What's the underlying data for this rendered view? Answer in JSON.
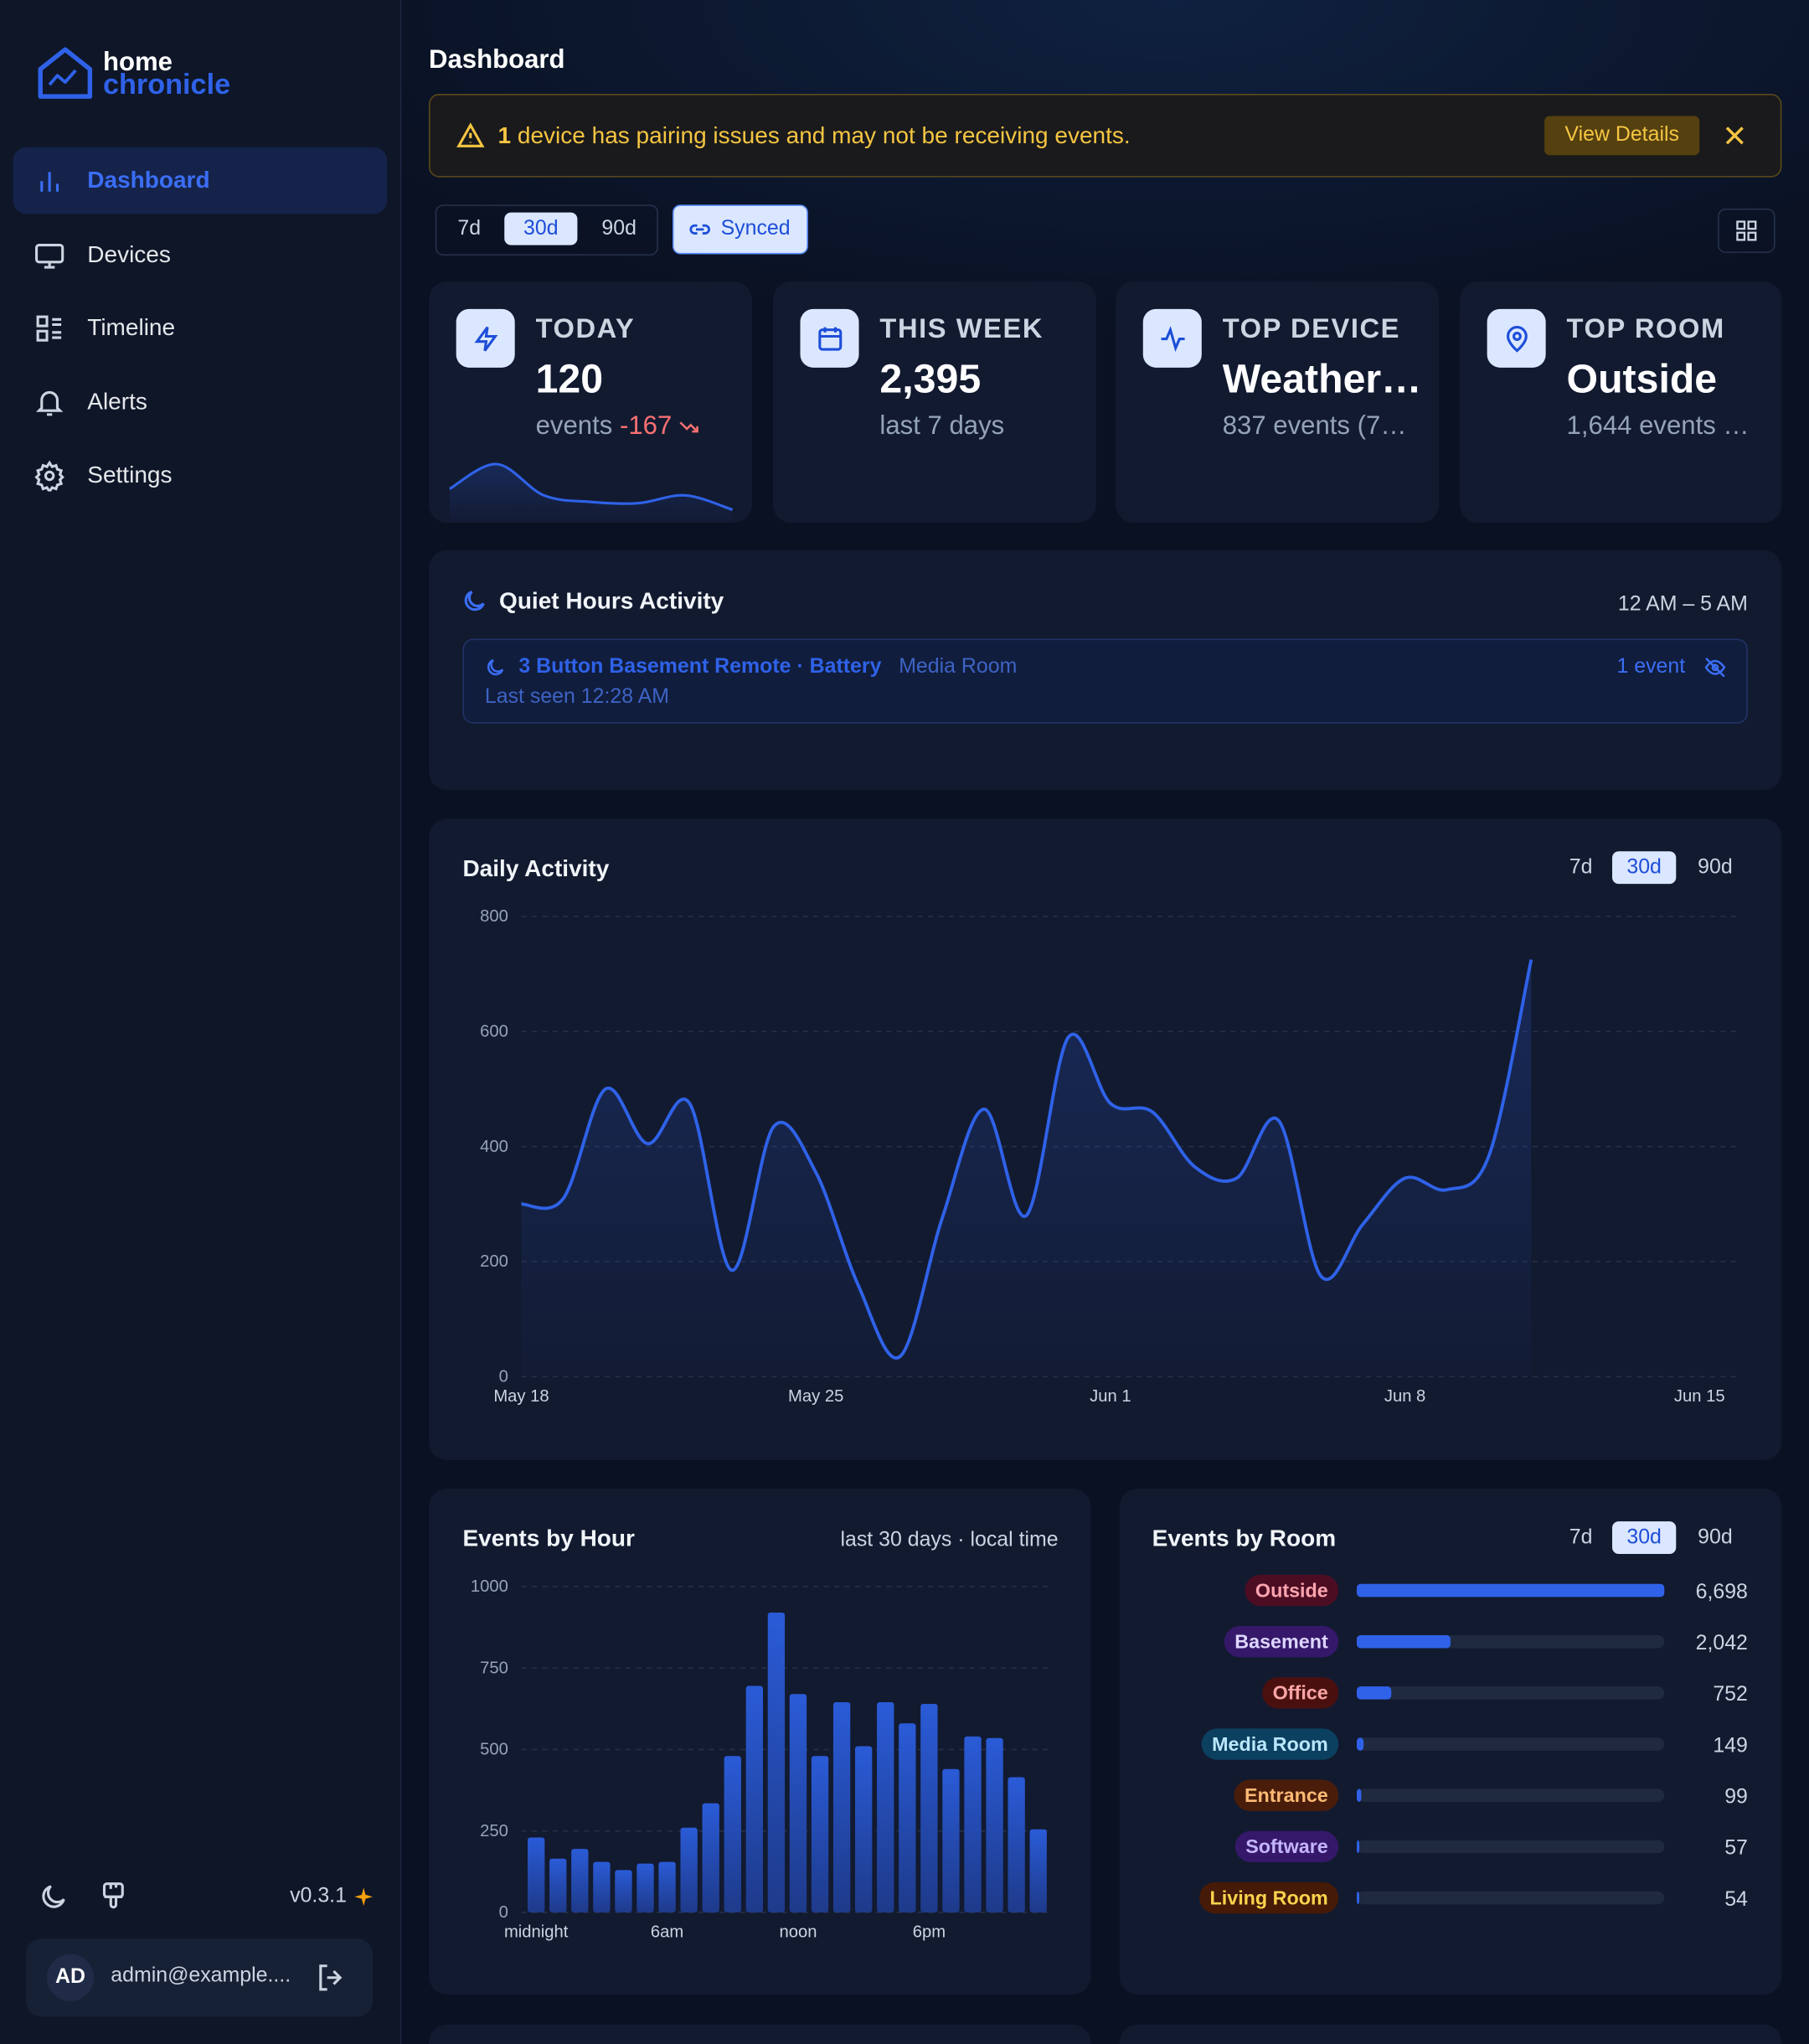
{
  "sidebar": {
    "logo": {
      "line1": "home",
      "line2": "chronicle"
    },
    "nav": [
      "Dashboard",
      "Devices",
      "Timeline",
      "Alerts",
      "Settings"
    ],
    "active_nav": 0,
    "version": "v0.3.1",
    "user": {
      "initials": "AD",
      "email": "admin@example...."
    }
  },
  "header": {
    "title": "Dashboard"
  },
  "alert": {
    "count": "1",
    "message": "device has pairing issues and may not be receiving events.",
    "action": "View Details"
  },
  "range_tabs": {
    "options": [
      "7d",
      "30d",
      "90d"
    ],
    "selected": 1,
    "sync": "Synced"
  },
  "stats": [
    {
      "label": "TODAY",
      "value": "120",
      "sub": "events",
      "delta": "-167",
      "sparkline": [
        25,
        44,
        20,
        15,
        14,
        20,
        9
      ]
    },
    {
      "label": "THIS WEEK",
      "value": "2,395",
      "sub": "last 7 days"
    },
    {
      "label": "TOP DEVICE",
      "value": "Weather…",
      "sub": "837 events (7…"
    },
    {
      "label": "TOP ROOM",
      "value": "Outside",
      "sub": "1,644 events …"
    }
  ],
  "quiet_hours": {
    "title": "Quiet Hours Activity",
    "range": "12 AM – 5 AM",
    "items": [
      {
        "device": "3 Button Basement Remote · Battery",
        "room": "Media Room",
        "last_seen": "Last seen 12:28 AM",
        "count": "1 event"
      }
    ]
  },
  "chart_data": [
    {
      "type": "line",
      "title": "Daily Activity",
      "tabs": [
        "7d",
        "30d",
        "90d"
      ],
      "selected_tab": 1,
      "categories": [
        "May 18",
        null,
        null,
        null,
        null,
        null,
        null,
        "May 25",
        null,
        null,
        null,
        null,
        null,
        null,
        "Jun 1",
        null,
        null,
        null,
        null,
        null,
        null,
        "Jun 8",
        null,
        null,
        null,
        null,
        null,
        null,
        "Jun 15"
      ],
      "values": [
        300,
        310,
        500,
        405,
        475,
        185,
        435,
        355,
        160,
        35,
        275,
        465,
        280,
        590,
        475,
        460,
        365,
        345,
        445,
        175,
        265,
        345,
        325,
        385,
        725,
        null,
        null,
        null,
        null
      ],
      "color": "#2f62e8",
      "ylim": [
        0,
        800
      ],
      "yticks": [
        0,
        200,
        400,
        600,
        800
      ],
      "grid": true
    },
    {
      "type": "bar",
      "title": "Events by Hour",
      "subtitle": "last 30 days · local time",
      "categories": [
        "midnight",
        null,
        null,
        null,
        null,
        null,
        "6am",
        null,
        null,
        null,
        null,
        null,
        "noon",
        null,
        null,
        null,
        null,
        null,
        "6pm",
        null,
        null,
        null,
        null,
        null
      ],
      "values": [
        230,
        165,
        195,
        155,
        130,
        150,
        155,
        260,
        335,
        480,
        695,
        920,
        670,
        480,
        645,
        510,
        645,
        580,
        640,
        440,
        540,
        535,
        415,
        255
      ],
      "color": "#2a5bd7",
      "ylim": [
        0,
        1000
      ],
      "yticks": [
        0,
        250,
        500,
        750,
        1000
      ],
      "grid": true
    },
    {
      "type": "hbar",
      "title": "Events by Room",
      "tabs": [
        "7d",
        "30d",
        "90d"
      ],
      "selected_tab": 1,
      "categories": [
        "Outside",
        "Basement",
        "Office",
        "Media Room",
        "Entrance",
        "Software",
        "Living Room"
      ],
      "values": [
        6698,
        2042,
        752,
        149,
        99,
        57,
        54
      ],
      "value_labels": [
        "6,698",
        "2,042",
        "752",
        "149",
        "99",
        "57",
        "54"
      ],
      "color": "#2f62e8",
      "label_colors": [
        "#4c0d22",
        "#35186a",
        "#4a1010",
        "#0c4060",
        "#4a1d0a",
        "#35186a",
        "#451a06"
      ],
      "label_text_colors": [
        "#fda4af",
        "#ddd6fe",
        "#fca5a5",
        "#bae6fd",
        "#fdba74",
        "#c4b5fd",
        "#fcd34d"
      ]
    }
  ]
}
